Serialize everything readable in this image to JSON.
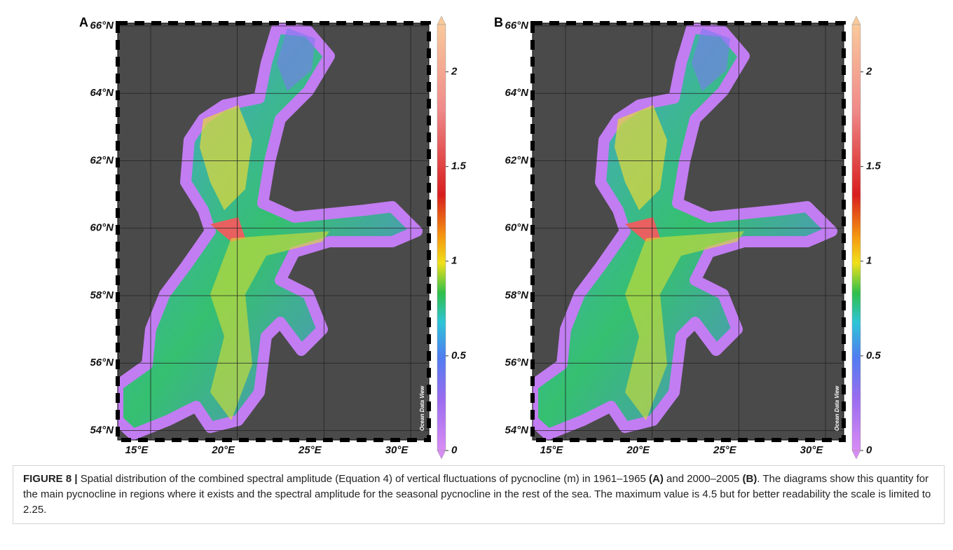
{
  "map": {
    "lat_range": [
      53.72,
      66.083
    ],
    "lon_range": [
      13.1,
      31.05
    ]
  },
  "panels": [
    {
      "label": "A",
      "lat_ticks": [
        {
          "value": 66,
          "label": "66°N"
        },
        {
          "value": 64,
          "label": "64°N"
        },
        {
          "value": 62,
          "label": "62°N"
        },
        {
          "value": 60,
          "label": "60°N"
        },
        {
          "value": 58,
          "label": "58°N"
        },
        {
          "value": 56,
          "label": "56°N"
        },
        {
          "value": 54,
          "label": "54°N"
        }
      ],
      "lon_ticks": [
        {
          "value": 15,
          "label": "15°E"
        },
        {
          "value": 20,
          "label": "20°E"
        },
        {
          "value": 25,
          "label": "25°E"
        },
        {
          "value": 30,
          "label": "30°E"
        }
      ],
      "colorbar": {
        "range": [
          0,
          2.25
        ],
        "ticks": [
          0,
          0.5,
          1,
          1.5,
          2
        ]
      },
      "credit": "Ocean Data View"
    },
    {
      "label": "B",
      "lat_ticks": [
        {
          "value": 66,
          "label": "66°N"
        },
        {
          "value": 64,
          "label": "64°N"
        },
        {
          "value": 62,
          "label": "62°N"
        },
        {
          "value": 60,
          "label": "60°N"
        },
        {
          "value": 58,
          "label": "58°N"
        },
        {
          "value": 56,
          "label": "56°N"
        },
        {
          "value": 54,
          "label": "54°N"
        }
      ],
      "lon_ticks": [
        {
          "value": 15,
          "label": "15°E"
        },
        {
          "value": 20,
          "label": "20°E"
        },
        {
          "value": 25,
          "label": "25°E"
        },
        {
          "value": 30,
          "label": "30°E"
        }
      ],
      "colorbar": {
        "range": [
          0,
          2.25
        ],
        "ticks": [
          0,
          0.5,
          1,
          1.5,
          2
        ]
      },
      "credit": "Ocean Data View"
    }
  ],
  "caption": {
    "parts": [
      {
        "text": "FIGURE 8 |",
        "bold": true
      },
      {
        "text": " Spatial distribution of the combined spectral amplitude (Equation 4) of vertical fluctuations of pycnocline (m) in 1961–1965 ",
        "bold": false
      },
      {
        "text": "(A)",
        "bold": true
      },
      {
        "text": " and 2000–2005 ",
        "bold": false
      },
      {
        "text": "(B)",
        "bold": true
      },
      {
        "text": ". The diagrams show this quantity for the main pycnocline in regions where it exists and the spectral amplitude for the seasonal pycnocline in the rest of the sea. The maximum value is 4.5 but for better readability the scale is limited to 2.25.",
        "bold": false
      }
    ]
  }
}
